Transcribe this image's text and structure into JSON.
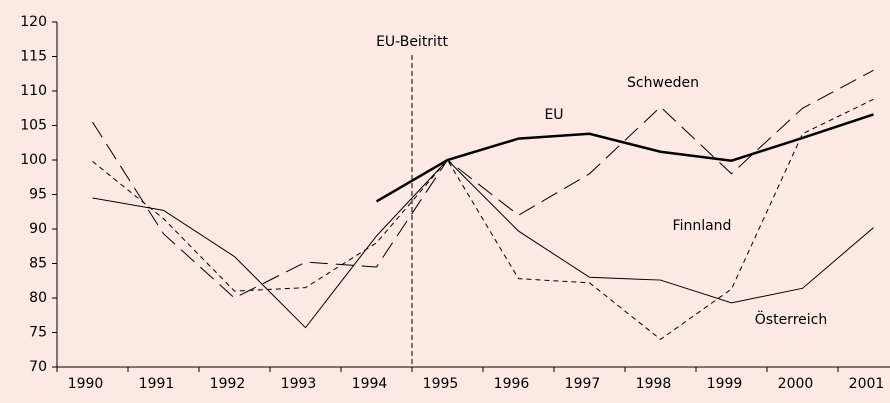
{
  "chart_data": {
    "type": "line",
    "categories": [
      "1990",
      "1991",
      "1992",
      "1993",
      "1994",
      "1995",
      "1996",
      "1997",
      "1998",
      "1999",
      "2000",
      "2001"
    ],
    "series": [
      {
        "name": "EU",
        "color": "#000000",
        "dash": "solid",
        "width": 2.5,
        "values": [
          null,
          null,
          null,
          null,
          94,
          100,
          103.1,
          103.8,
          101.2,
          99.9,
          103.2,
          106.6
        ]
      },
      {
        "name": "Schweden",
        "color": "#000000",
        "dash": "long",
        "width": 1,
        "values": [
          105.5,
          89.3,
          80,
          85.2,
          84.5,
          100,
          92,
          98,
          107.7,
          98,
          107.5,
          113
        ]
      },
      {
        "name": "Finnland",
        "color": "#000000",
        "dash": "short",
        "width": 1,
        "values": [
          99.8,
          91.5,
          81,
          81.5,
          88,
          100,
          82.8,
          82.2,
          74,
          81.3,
          103.8,
          108.8
        ]
      },
      {
        "name": "Österreich",
        "color": "#000000",
        "dash": "solid",
        "width": 1,
        "values": [
          94.5,
          92.7,
          86,
          75.7,
          89,
          100,
          89.7,
          83,
          82.6,
          79.3,
          81.4,
          90.2
        ]
      }
    ],
    "annotation": "EU-Beitritt",
    "ylim": [
      70,
      120
    ],
    "yticks": [
      70,
      75,
      80,
      85,
      90,
      95,
      100,
      105,
      110,
      115,
      120
    ],
    "grid": false
  }
}
